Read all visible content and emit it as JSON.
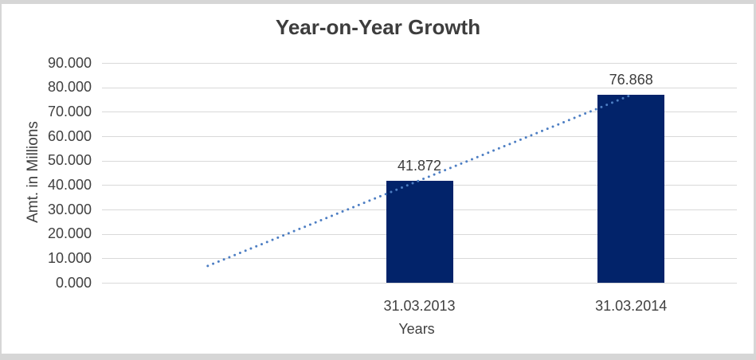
{
  "frame": {
    "border_color": "#d6d6d6",
    "background": "#ffffff"
  },
  "chart_data": {
    "type": "bar",
    "title": "Year-on-Year Growth",
    "xlabel": "Years",
    "ylabel": "Amt. in Millions",
    "categories": [
      "31.03.2013",
      "31.03.2014"
    ],
    "values": [
      41.872,
      76.868
    ],
    "data_labels": [
      "41.872",
      "76.868"
    ],
    "ylim": [
      0,
      90
    ],
    "y_tick_step": 10,
    "y_tick_labels": [
      "0.000",
      "10.000",
      "20.000",
      "30.000",
      "40.000",
      "50.000",
      "60.000",
      "70.000",
      "80.000",
      "90.000"
    ],
    "grid": "horizontal",
    "grid_color": "#d9d9d9",
    "legend": "none",
    "bar_color": "#02236a",
    "trendline": {
      "type": "linear",
      "style": "dotted",
      "color": "#4d7ec3",
      "backward_periods": 1
    }
  }
}
